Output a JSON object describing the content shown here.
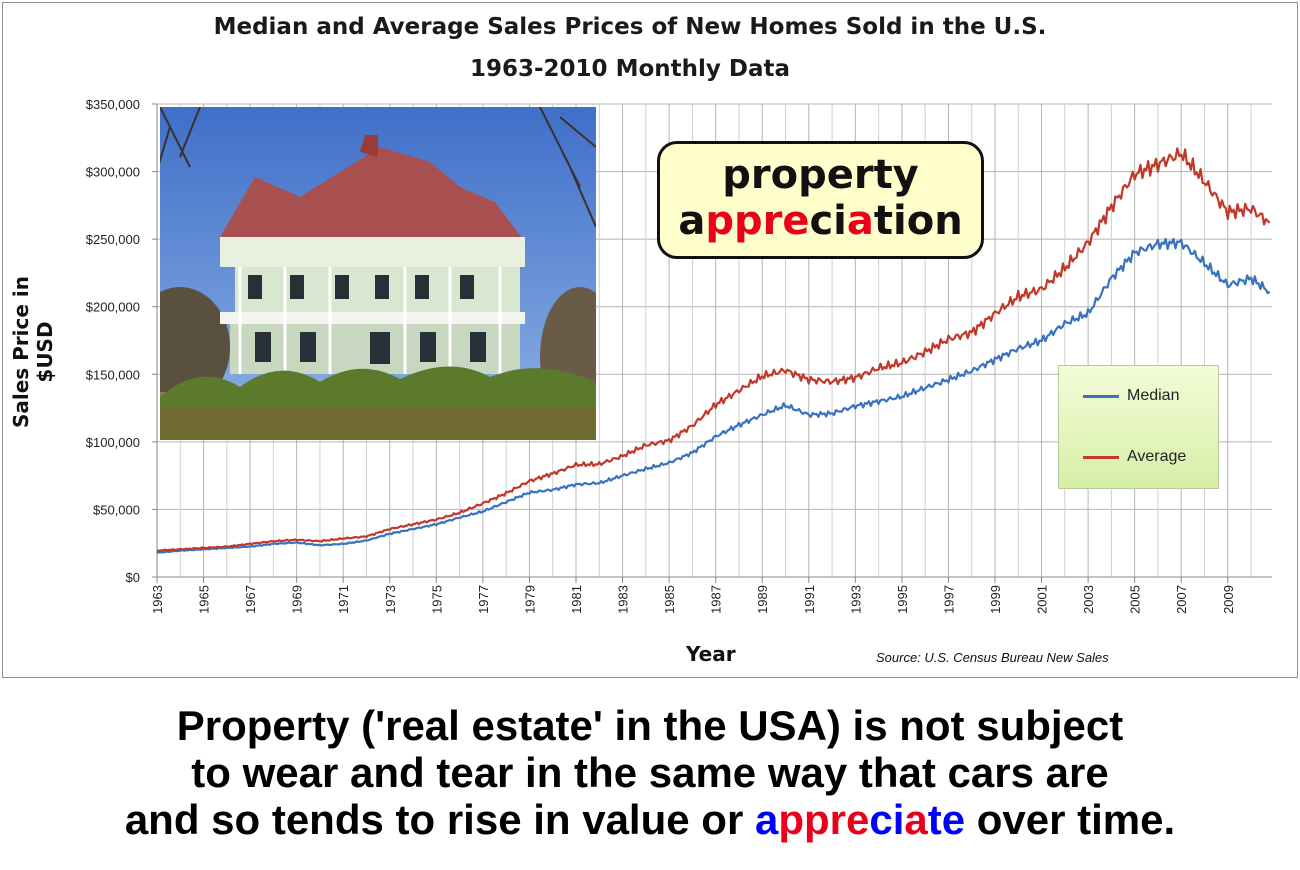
{
  "chart_data": {
    "type": "line",
    "title": "Median and Average Sales Prices of New Homes Sold in the U.S.",
    "subtitle": "1963-2010 Monthly Data",
    "xlabel": "Year",
    "ylabel": "Sales Price in $USD",
    "xlim": [
      1963,
      2010.9
    ],
    "ylim": [
      0,
      350000
    ],
    "y_ticks": [
      0,
      50000,
      100000,
      150000,
      200000,
      250000,
      300000,
      350000
    ],
    "y_tick_labels": [
      "$0",
      "$50,000",
      "$100,000",
      "$150,000",
      "$200,000",
      "$250,000",
      "$300,000",
      "$350,000"
    ],
    "x_tick_labels": [
      "1963",
      "1965",
      "1967",
      "1969",
      "1971",
      "1973",
      "1975",
      "1977",
      "1979",
      "1981",
      "1983",
      "1985",
      "1987",
      "1989",
      "1991",
      "1993",
      "1995",
      "1997",
      "1999",
      "2001",
      "2003",
      "2005",
      "2007",
      "2009"
    ],
    "x_ticks": [
      1963,
      1965,
      1967,
      1969,
      1971,
      1973,
      1975,
      1977,
      1979,
      1981,
      1983,
      1985,
      1987,
      1989,
      1991,
      1993,
      1995,
      1997,
      1999,
      2001,
      2003,
      2005,
      2007,
      2009
    ],
    "grid": true,
    "legend_position": "right",
    "series": [
      {
        "name": "Median",
        "color": "#3a72c0",
        "x": [
          1963,
          1964,
          1965,
          1966,
          1967,
          1968,
          1969,
          1970,
          1971,
          1972,
          1973,
          1974,
          1975,
          1976,
          1977,
          1978,
          1979,
          1980,
          1981,
          1982,
          1983,
          1984,
          1985,
          1986,
          1987,
          1988,
          1989,
          1990,
          1991,
          1992,
          1993,
          1994,
          1995,
          1996,
          1997,
          1998,
          1999,
          2000,
          2001,
          2002,
          2003,
          2004,
          2005,
          2006,
          2007,
          2008,
          2009,
          2010,
          2010.8
        ],
        "values": [
          18000,
          19500,
          20500,
          21500,
          22500,
          24500,
          25500,
          23500,
          24500,
          27000,
          32000,
          35500,
          39000,
          44000,
          48500,
          55500,
          62500,
          64500,
          68500,
          69500,
          75000,
          80000,
          84500,
          92000,
          104000,
          112500,
          120000,
          127000,
          120000,
          121000,
          126500,
          130000,
          133500,
          140000,
          146000,
          152500,
          161000,
          169000,
          175000,
          187500,
          195000,
          221000,
          240000,
          246500,
          247500,
          232000,
          216000,
          221000,
          211000
        ]
      },
      {
        "name": "Average",
        "color": "#c0392b",
        "x": [
          1963,
          1964,
          1965,
          1966,
          1967,
          1968,
          1969,
          1970,
          1971,
          1972,
          1973,
          1974,
          1975,
          1976,
          1977,
          1978,
          1979,
          1980,
          1981,
          1982,
          1983,
          1984,
          1985,
          1986,
          1987,
          1988,
          1989,
          1990,
          1991,
          1992,
          1993,
          1994,
          1995,
          1996,
          1997,
          1998,
          1999,
          2000,
          2001,
          2002,
          2003,
          2004,
          2005,
          2006,
          2007,
          2008,
          2009,
          2010,
          2010.8
        ],
        "values": [
          19500,
          20500,
          21500,
          22500,
          24500,
          26500,
          27500,
          26500,
          28500,
          30000,
          35500,
          39000,
          42500,
          47500,
          54500,
          62000,
          71000,
          76500,
          83000,
          83500,
          89500,
          97500,
          101000,
          112000,
          127500,
          138000,
          148500,
          153000,
          146000,
          144500,
          147500,
          154500,
          158500,
          166500,
          176000,
          181000,
          195000,
          207500,
          213000,
          228500,
          247500,
          274000,
          298000,
          305500,
          313500,
          292500,
          270000,
          272500,
          262000
        ]
      }
    ]
  },
  "source_note": "Source:  U.S. Census Bureau New Sales",
  "callout": {
    "line1": "property",
    "line2_parts": [
      "a",
      "ppre",
      "ci",
      "a",
      "tion"
    ]
  },
  "caption": {
    "line1": "Property ('real estate' in the USA) is not subject",
    "line2": "to wear and tear in the same way that cars are",
    "line3_before": "and so tends to rise in value or ",
    "line3_word_parts": [
      "a",
      "ppre",
      "ci",
      "a",
      "te"
    ],
    "line3_after": " over time."
  },
  "colors": {
    "median_line": "#3a72c0",
    "average_line": "#c0392b",
    "callout_fill": "#ffffcc",
    "highlight_red": "#e8001c",
    "highlight_blue": "#0000ff",
    "grid": "#b4b4b4"
  },
  "photo": {
    "icon": "victorian-house-photo"
  }
}
